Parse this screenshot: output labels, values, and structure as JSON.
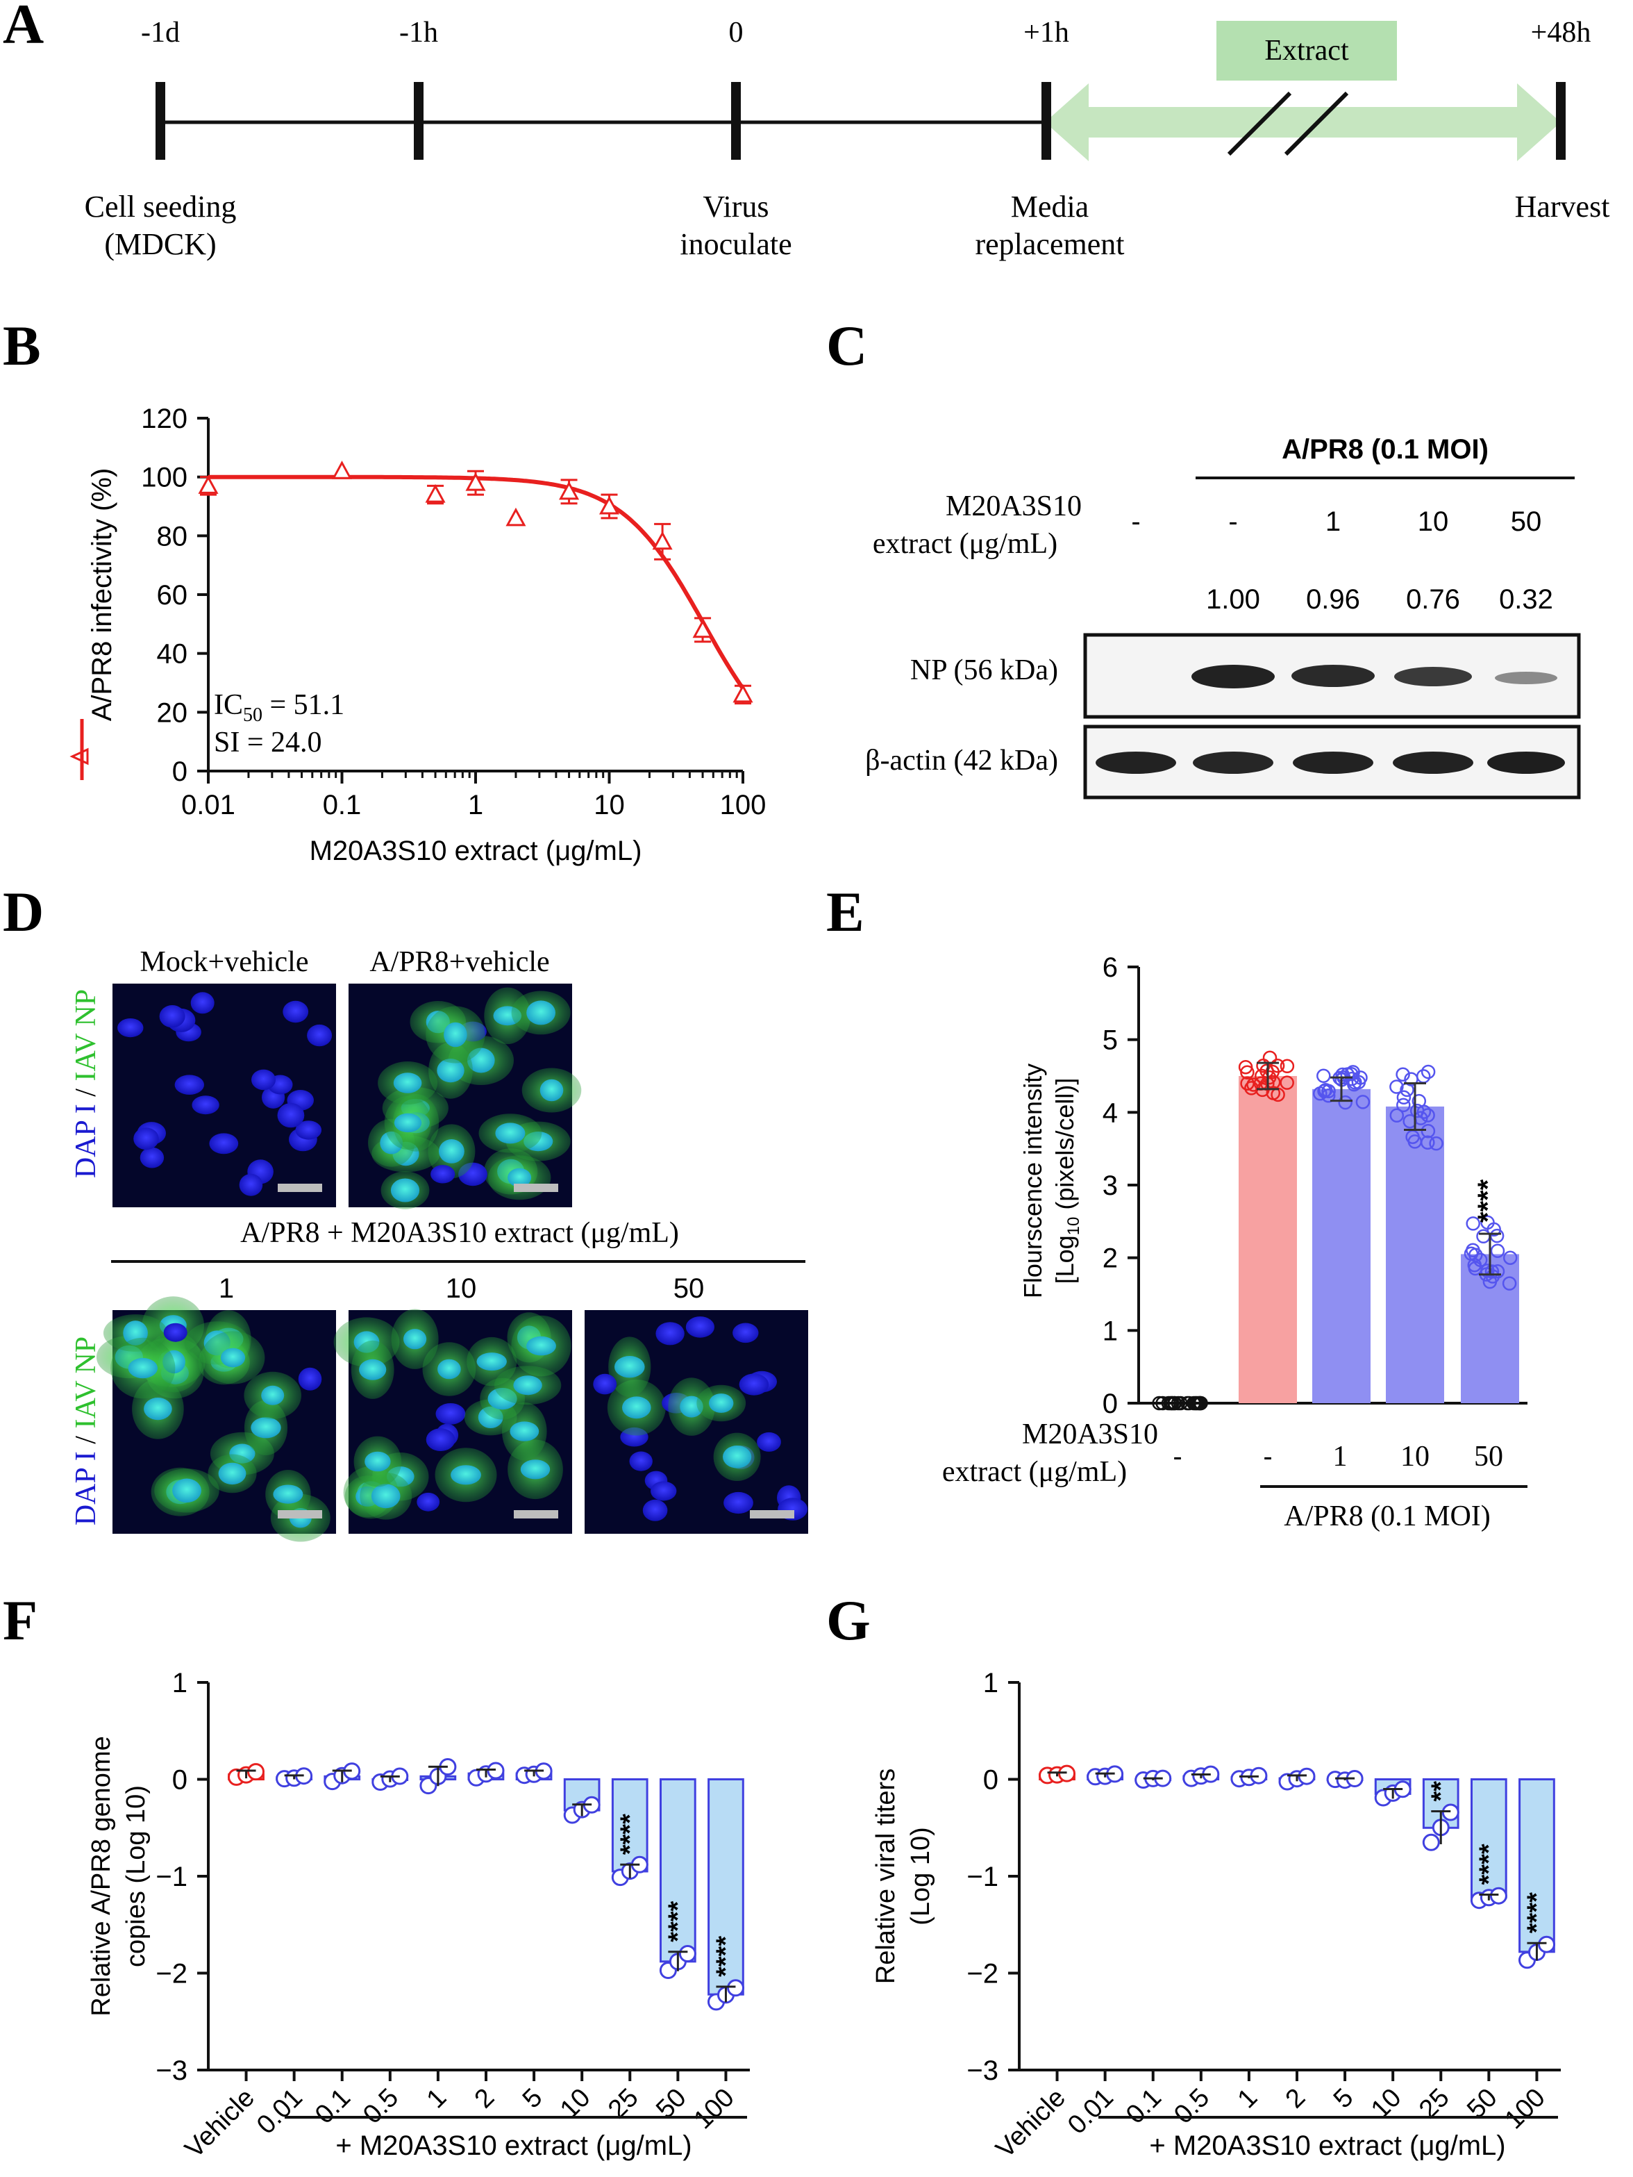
{
  "colors": {
    "red": "#e8201f",
    "blue_bar": "#8f8ff2",
    "blue_edge": "#4040e0",
    "red_bar": "#f7a1a1",
    "light_blue": "#b8dcf5",
    "light_red": "#f9dada",
    "green_arrow": "#c6e6c0",
    "extract_box": "#b4e0b0",
    "micro_blue": "#1a1ad0",
    "micro_green": "#40d840"
  },
  "panels": {
    "A": {
      "letter": "A",
      "times": [
        "-1d",
        "-1h",
        "0",
        "+1h",
        "+48h"
      ],
      "extract_label": "Extract",
      "steps": [
        {
          "l1": "Cell seeding",
          "l2": "(MDCK)"
        },
        {
          "l1": "Virus",
          "l2": "inoculate"
        },
        {
          "l1": "Media",
          "l2": "replacement"
        },
        {
          "l1": "Harvest",
          "l2": ""
        }
      ]
    },
    "B": {
      "letter": "B",
      "ic50_prefix": "IC",
      "ic50_sub": "50",
      "ic50_value": " = 51.1",
      "si": "SI = 24.0"
    },
    "C": {
      "letter": "C",
      "header": "A/PR8 (0.1 MOI)",
      "row_label_1": "M20A3S10",
      "row_label_2": "extract (μg/mL)",
      "lanes": [
        "-",
        "-",
        "1",
        "10",
        "50"
      ],
      "ratios": [
        "1.00",
        "0.96",
        "0.76",
        "0.32"
      ],
      "blot1_label": "NP (56 kDa)",
      "blot2_label": "β-actin (42 kDa)"
    },
    "D": {
      "letter": "D",
      "top_titles": [
        "Mock+vehicle",
        "A/PR8+vehicle"
      ],
      "ylabel_blue": "DAP I",
      "ylabel_sep": " / ",
      "ylabel_green": "IAV NP",
      "bottom_header": "A/PR8 + M20A3S10 extract (μg/mL)",
      "bottom_titles": [
        "1",
        "10",
        "50"
      ]
    },
    "E": {
      "letter": "E",
      "row_label_1": "M20A3S10",
      "row_label_2": "extract (μg/mL)",
      "lanes": [
        "-",
        "-",
        "1",
        "10",
        "50"
      ],
      "group": "A/PR8 (0.1 MOI)"
    },
    "F": {
      "letter": "F",
      "group": "+ M20A3S10 extract (μg/mL)"
    },
    "G": {
      "letter": "G",
      "group": "+ M20A3S10 extract (μg/mL)"
    }
  },
  "chart_data": [
    {
      "id": "B",
      "type": "scatter",
      "title": "",
      "xlabel": "M20A3S10 extract (μg/mL)",
      "ylabel": "A/PR8 infectivity (%)",
      "xscale": "log",
      "xlim": [
        0.01,
        100
      ],
      "ylim": [
        0,
        120
      ],
      "xticks": [
        "0.01",
        "0.1",
        "1",
        "10",
        "100"
      ],
      "yticks": [
        "0",
        "20",
        "40",
        "60",
        "80",
        "100",
        "120"
      ],
      "points": [
        {
          "x": 0.01,
          "y": 97,
          "err": 3
        },
        {
          "x": 0.1,
          "y": 102,
          "err": 0
        },
        {
          "x": 0.5,
          "y": 94,
          "err": 3
        },
        {
          "x": 1,
          "y": 98,
          "err": 4
        },
        {
          "x": 2,
          "y": 86,
          "err": 0
        },
        {
          "x": 5,
          "y": 95,
          "err": 4
        },
        {
          "x": 10,
          "y": 90,
          "err": 4
        },
        {
          "x": 25,
          "y": 78,
          "err": 6
        },
        {
          "x": 50,
          "y": 48,
          "err": 4
        },
        {
          "x": 100,
          "y": 26,
          "err": 3
        }
      ],
      "fit": {
        "top": 100,
        "bottom": 0,
        "ic50": 51.1,
        "hill": 1.4
      }
    },
    {
      "id": "E",
      "type": "bar",
      "ylabel_1": "Flourscence intensity",
      "ylabel_2": "[Log",
      "ylabel_sub": "10",
      "ylabel_3": " (pixels/cell)]",
      "ylim": [
        0,
        6
      ],
      "yticks": [
        "0",
        "1",
        "2",
        "3",
        "4",
        "5",
        "6"
      ],
      "categories": [
        "-",
        "-",
        "1",
        "10",
        "50"
      ],
      "values": [
        0,
        4.5,
        4.32,
        4.08,
        2.05
      ],
      "errors": [
        0,
        0.18,
        0.16,
        0.32,
        0.28
      ],
      "significance": [
        "",
        "",
        "",
        "",
        "****"
      ]
    },
    {
      "id": "F",
      "type": "bar",
      "ylabel_1": "Relative A/PR8 genome",
      "ylabel_2": "copies (Log 10)",
      "ylim": [
        -3,
        1
      ],
      "yticks": [
        "1",
        "0",
        "−1",
        "−2",
        "−3"
      ],
      "categories": [
        "Vehicle",
        "0.01",
        "0.1",
        "0.5",
        "1",
        "2",
        "5",
        "10",
        "25",
        "50",
        "100"
      ],
      "values": [
        0.05,
        0.02,
        0.03,
        0.0,
        0.03,
        0.06,
        0.06,
        -0.32,
        -0.95,
        -1.88,
        -2.22
      ],
      "errors": [
        0.04,
        0.02,
        0.06,
        0.03,
        0.1,
        0.04,
        0.03,
        0.06,
        0.07,
        0.1,
        0.08
      ],
      "significance": [
        "",
        "",
        "",
        "",
        "",
        "",
        "",
        "",
        "****",
        "****",
        "****"
      ]
    },
    {
      "id": "G",
      "type": "bar",
      "ylabel_1": "Relative viral titers",
      "ylabel_2": "(Log 10)",
      "ylim": [
        -3,
        1
      ],
      "yticks": [
        "1",
        "0",
        "−1",
        "−2",
        "−3"
      ],
      "categories": [
        "Vehicle",
        "0.01",
        "0.1",
        "0.5",
        "1",
        "2",
        "5",
        "10",
        "25",
        "50",
        "100"
      ],
      "values": [
        0.05,
        0.04,
        0.0,
        0.03,
        0.02,
        0.01,
        0.0,
        -0.15,
        -0.5,
        -1.22,
        -1.78
      ],
      "errors": [
        0.02,
        0.02,
        0.01,
        0.02,
        0.01,
        0.03,
        0.01,
        0.05,
        0.17,
        0.03,
        0.09
      ],
      "significance": [
        "",
        "",
        "",
        "",
        "",
        "",
        "",
        "",
        "**",
        "****",
        "****"
      ]
    }
  ]
}
